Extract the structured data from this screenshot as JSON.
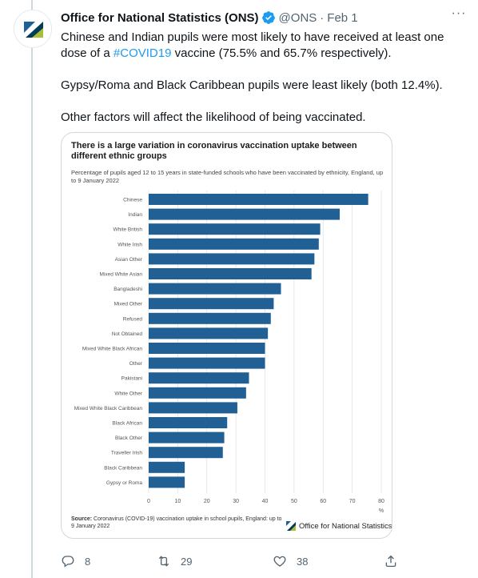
{
  "tweet": {
    "author_name": "Office for National Statistics (ONS)",
    "handle": "@ONS",
    "separator": "·",
    "date": "Feb 1",
    "more_label": "···",
    "text_p1_before": "Chinese and Indian pupils were most likely to have received at least one dose of a ",
    "hashtag": "#COVID19",
    "text_p1_after": " vaccine (75.5% and 65.7% respectively).",
    "text_p2": "Gypsy/Roma and Black Caribbean pupils were least likely (both 12.4%).",
    "text_p3": "Other factors will affect the likelihood of being vaccinated."
  },
  "card": {
    "title": "There is a large variation in coronavirus vaccination uptake between different ethnic groups",
    "subtitle": "Percentage of pupils aged 12 to 15 years in state-funded schools who have been vaccinated by ethnicity, England, up to 9 January 2022",
    "source_label": "Source:",
    "source_text": " Coronavirus (COVID-19) vaccination uptake in school pupils, England: up to 9 January 2022",
    "logo_text": "Office for National Statistics"
  },
  "chart_data": {
    "type": "bar",
    "orientation": "horizontal",
    "categories": [
      "Chinese",
      "Indian",
      "White British",
      "White Irish",
      "Asian Other",
      "Mixed White Asian",
      "Bangladeshi",
      "Mixed Other",
      "Refused",
      "Not Obtained",
      "Mixed White Black African",
      "Other",
      "Pakistani",
      "White Other",
      "Mixed White Black Caribbean",
      "Black African",
      "Black Other",
      "Traveller Irish",
      "Black Caribbean",
      "Gypsy or Roma"
    ],
    "values": [
      75.5,
      65.7,
      59.0,
      58.5,
      57.0,
      56.0,
      45.5,
      43.0,
      42.0,
      41.0,
      40.0,
      40.0,
      34.5,
      33.5,
      30.5,
      27.0,
      26.0,
      25.5,
      12.4,
      12.4
    ],
    "xticks": [
      "0",
      "10",
      "20",
      "30",
      "40",
      "50",
      "60",
      "70",
      "80"
    ],
    "xlim": [
      0,
      80
    ],
    "xlabel": "%",
    "bar_color": "#206095",
    "grid": "vertical"
  },
  "actions": {
    "reply_count": "8",
    "retweet_count": "29",
    "like_count": "38"
  },
  "colors": {
    "accent": "#1d9bf0",
    "muted": "#536471",
    "ons_blue": "#206095"
  }
}
